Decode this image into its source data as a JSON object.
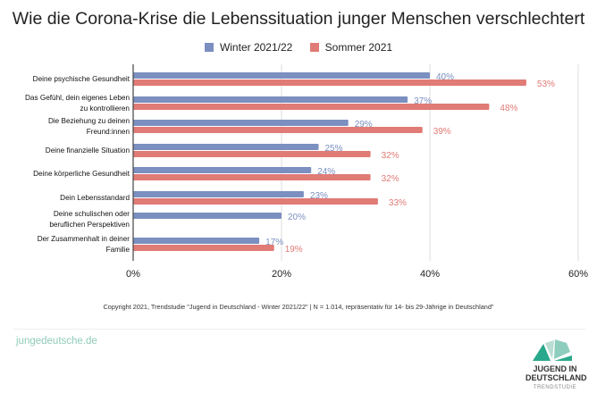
{
  "chart_data": {
    "type": "bar",
    "orientation": "horizontal",
    "title": "Wie die Corona-Krise die Lebenssituation junger Menschen verschlechtert",
    "categories": [
      "Deine psychische Gesundheit",
      "Das Gefühl, dein eigenes Leben zu kontrollieren",
      "Die Beziehung zu deinen Freund:innen",
      "Deine finanzielle Situation",
      "Deine körperliche Gesundheit",
      "Dein Lebensstandard",
      "Deine schulischen oder beruflichen Perspektiven",
      "Der Zusammenhalt in deiner Familie"
    ],
    "category_lines": [
      [
        "Deine psychische Gesundheit"
      ],
      [
        "Das Gefühl, dein eigenes Leben",
        "zu kontrollieren"
      ],
      [
        "Die Beziehung zu deinen",
        "Freund:innen"
      ],
      [
        "Deine finanzielle Situation"
      ],
      [
        "Deine körperliche Gesundheit"
      ],
      [
        "Dein Lebensstandard"
      ],
      [
        "Deine schulischen oder",
        "beruflichen Perspektiven"
      ],
      [
        "Der Zusammenhalt in deiner",
        "Familie"
      ]
    ],
    "series": [
      {
        "name": "Winter 2021/22",
        "color": "#7b8fc0",
        "values": [
          40,
          37,
          29,
          25,
          24,
          23,
          20,
          17
        ]
      },
      {
        "name": "Sommer 2021",
        "color": "#e07b76",
        "values": [
          53,
          48,
          39,
          32,
          32,
          33,
          null,
          19
        ]
      }
    ],
    "xlim": [
      0,
      60
    ],
    "xticks": [
      0,
      20,
      40,
      60
    ],
    "xtick_labels": [
      "0%",
      "20%",
      "40%",
      "60%"
    ],
    "grid": true,
    "legend": "top"
  },
  "footer": {
    "copyright": "Copyright 2021, Trendstudie \"Jugend in Deutschland - Winter 2021/22\" | N = 1.014, repräsentativ für 14- bis 29-Jährige in Deutschland\"",
    "site": "jungedeutsche.de",
    "logo_line1": "JUGEND IN",
    "logo_line2": "DEUTSCHLAND",
    "logo_line3": "TRENDSTUDIE"
  }
}
